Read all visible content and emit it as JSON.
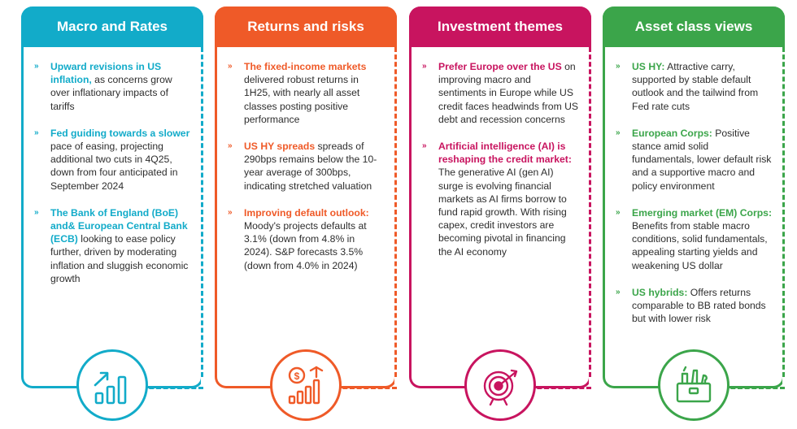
{
  "colors": {
    "macro": "#12abc9",
    "returns": "#ef5a28",
    "themes": "#c8145f",
    "assets": "#3ba54a"
  },
  "cards": [
    {
      "title": "Macro and Rates",
      "icon": "bar-chart-up-icon",
      "items": [
        {
          "lead": "Upward revisions in US inflation,",
          "text": " as concerns grow over inflationary impacts of tariffs"
        },
        {
          "lead": "Fed guiding towards a slower",
          "text": " pace of easing, projecting additional two cuts in 4Q25, down from four anticipated in September 2024"
        },
        {
          "lead": "The Bank of England (BoE) and& European Central Bank (ECB)",
          "text": " looking to ease policy further, driven by moderating inflation and sluggish economic growth"
        }
      ]
    },
    {
      "title": "Returns and risks",
      "icon": "coin-growth-icon",
      "items": [
        {
          "lead": "The fixed-income markets",
          "text": " delivered robust returns in 1H25, with nearly all asset classes posting positive performance"
        },
        {
          "lead": "US HY spreads",
          "text": " spreads of 290bps remains below the 10-year average of 300bps, indicating stretched valuation"
        },
        {
          "lead": "Improving default outlook:",
          "text": " Moody's projects defaults at 3.1% (down from 4.8% in 2024). S&P forecasts 3.5% (down from 4.0% in 2024)"
        }
      ]
    },
    {
      "title": "Investment themes",
      "icon": "target-icon",
      "items": [
        {
          "lead": "Prefer Europe over the US",
          "text": " on improving macro and sentiments in Europe while US credit faces headwinds from US debt and recession concerns"
        },
        {
          "lead": "Artificial intelligence (AI) is reshaping the credit market:",
          "text": " The generative AI (gen AI) surge is evolving financial markets as AI firms borrow to fund rapid growth. With rising capex, credit investors are becoming pivotal in financing the AI economy"
        }
      ]
    },
    {
      "title": "Asset class views",
      "icon": "toolbox-icon",
      "items": [
        {
          "lead": "US HY:",
          "text": " Attractive carry, supported by stable default outlook and the tailwind from Fed rate cuts"
        },
        {
          "lead": "European Corps:",
          "text": " Positive stance amid solid fundamentals, lower default risk and a supportive macro and policy environment"
        },
        {
          "lead": "Emerging market (EM) Corps:",
          "text": " Benefits from stable macro conditions, solid fundamentals, appealing starting yields and weakening US dollar"
        },
        {
          "lead": "US hybrids:",
          "text": " Offers returns comparable to BB rated bonds but with lower risk"
        }
      ]
    }
  ],
  "bullet_glyph": "»"
}
